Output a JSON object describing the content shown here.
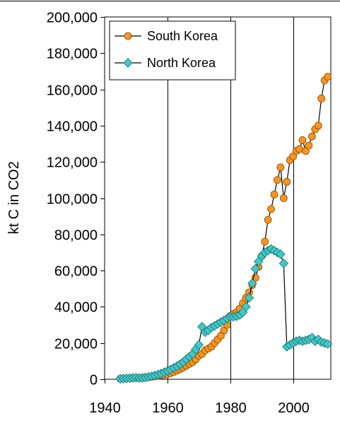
{
  "chart_data": {
    "type": "line",
    "title": "",
    "xlabel": "",
    "ylabel": "kt C in CO2",
    "xlim": [
      1940,
      2012
    ],
    "ylim": [
      0,
      200000
    ],
    "x_ticks": [
      1940,
      1960,
      1980,
      2000
    ],
    "x_tick_labels": [
      "1940",
      "1960",
      "1980",
      "2000"
    ],
    "y_ticks": [
      0,
      20000,
      40000,
      60000,
      80000,
      100000,
      120000,
      140000,
      160000,
      180000,
      200000
    ],
    "y_tick_labels": [
      "0",
      "20,000",
      "40,000",
      "60,000",
      "80,000",
      "100,000",
      "120,000",
      "140,000",
      "160,000",
      "180,000",
      "200,000"
    ],
    "grid": {
      "vertical": true,
      "horizontal": false
    },
    "legend": {
      "position": "top-left"
    },
    "series": [
      {
        "name": "South Korea",
        "marker": "circle",
        "color": "#F7941D",
        "x": [
          1945,
          1946,
          1947,
          1948,
          1949,
          1950,
          1951,
          1952,
          1953,
          1954,
          1955,
          1956,
          1957,
          1958,
          1959,
          1960,
          1961,
          1962,
          1963,
          1964,
          1965,
          1966,
          1967,
          1968,
          1969,
          1970,
          1971,
          1972,
          1973,
          1974,
          1975,
          1976,
          1977,
          1978,
          1979,
          1980,
          1981,
          1982,
          1983,
          1984,
          1985,
          1986,
          1987,
          1988,
          1989,
          1990,
          1991,
          1992,
          1993,
          1994,
          1995,
          1996,
          1997,
          1998,
          1999,
          2000,
          2001,
          2002,
          2003,
          2004,
          2005,
          2006,
          2007,
          2008,
          2009,
          2010,
          2011
        ],
        "y": [
          300,
          400,
          500,
          600,
          700,
          800,
          700,
          800,
          1000,
          1200,
          1400,
          1600,
          1900,
          2200,
          2500,
          2800,
          3400,
          4000,
          4800,
          5600,
          6500,
          7500,
          8500,
          9500,
          11000,
          13000,
          14000,
          16000,
          17000,
          18000,
          20000,
          22000,
          24000,
          27000,
          30000,
          35000,
          36000,
          37000,
          39000,
          42000,
          45000,
          48000,
          52000,
          56000,
          62000,
          68000,
          76000,
          88000,
          94000,
          102000,
          110000,
          117000,
          100000,
          109000,
          121000,
          123000,
          126000,
          127000,
          132000,
          126000,
          129000,
          134000,
          138000,
          140000,
          155000,
          165000,
          167000
        ]
      },
      {
        "name": "North Korea",
        "marker": "diamond",
        "color": "#40C8C8",
        "x": [
          1945,
          1946,
          1947,
          1948,
          1949,
          1950,
          1951,
          1952,
          1953,
          1954,
          1955,
          1956,
          1957,
          1958,
          1959,
          1960,
          1961,
          1962,
          1963,
          1964,
          1965,
          1966,
          1967,
          1968,
          1969,
          1970,
          1971,
          1972,
          1973,
          1974,
          1975,
          1976,
          1977,
          1978,
          1979,
          1980,
          1981,
          1982,
          1983,
          1984,
          1985,
          1986,
          1987,
          1988,
          1989,
          1990,
          1991,
          1992,
          1993,
          1994,
          1995,
          1996,
          1997,
          1998,
          1999,
          2000,
          2001,
          2002,
          2003,
          2004,
          2005,
          2006,
          2007,
          2008,
          2009,
          2010,
          2011
        ],
        "y": [
          300,
          400,
          500,
          600,
          800,
          900,
          700,
          800,
          1000,
          1300,
          1700,
          2100,
          2600,
          3200,
          3900,
          4600,
          5400,
          6300,
          7200,
          8300,
          9500,
          11000,
          12500,
          14000,
          16500,
          19000,
          29000,
          26000,
          27000,
          28500,
          29500,
          30500,
          31500,
          32500,
          33500,
          34500,
          34500,
          34800,
          35500,
          37000,
          40000,
          45000,
          53000,
          61000,
          65000,
          68000,
          70000,
          71000,
          72000,
          71000,
          70000,
          69000,
          64000,
          18000,
          19000,
          20000,
          21000,
          21500,
          21000,
          21500,
          22000,
          23000,
          21000,
          22000,
          20500,
          20000,
          19500
        ]
      }
    ]
  }
}
